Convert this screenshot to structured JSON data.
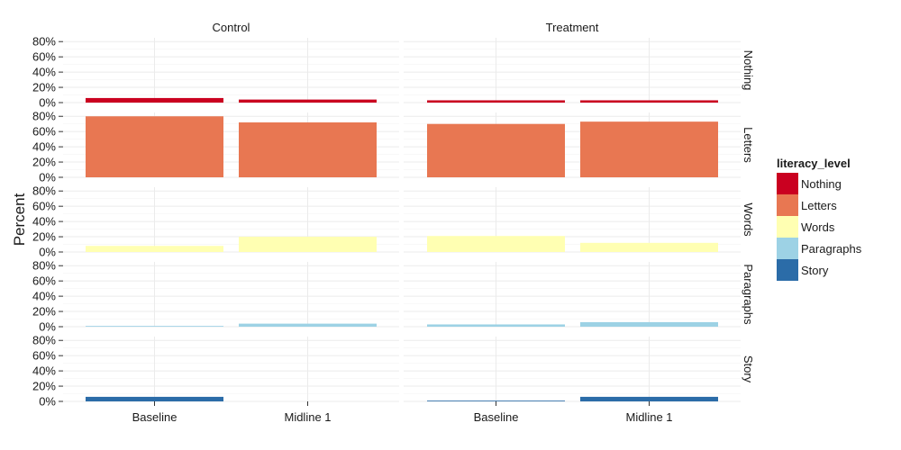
{
  "chart_data": {
    "type": "bar",
    "ylabel": "Percent",
    "xlabel": "",
    "y_ticks": [
      "0%",
      "20%",
      "40%",
      "60%",
      "80%"
    ],
    "ylim": [
      0,
      85
    ],
    "categories": [
      "Baseline",
      "Midline 1"
    ],
    "columns": [
      "Control",
      "Treatment"
    ],
    "rows": [
      "Nothing",
      "Letters",
      "Words",
      "Paragraphs",
      "Story"
    ],
    "legend": {
      "title": "literacy_level",
      "position": "right",
      "items": [
        {
          "label": "Nothing",
          "color": "#ca0020"
        },
        {
          "label": "Letters",
          "color": "#e87752"
        },
        {
          "label": "Words",
          "color": "#ffffb2"
        },
        {
          "label": "Paragraphs",
          "color": "#9dd2e5"
        },
        {
          "label": "Story",
          "color": "#2b6ca8"
        }
      ]
    },
    "grid": true,
    "series": [
      {
        "name": "Nothing",
        "values": {
          "Control": [
            6,
            4
          ],
          "Treatment": [
            3,
            3
          ]
        }
      },
      {
        "name": "Letters",
        "values": {
          "Control": [
            80,
            72
          ],
          "Treatment": [
            70,
            73
          ]
        }
      },
      {
        "name": "Words",
        "values": {
          "Control": [
            8,
            20
          ],
          "Treatment": [
            21,
            12
          ]
        }
      },
      {
        "name": "Paragraphs",
        "values": {
          "Control": [
            1,
            4
          ],
          "Treatment": [
            3,
            6
          ]
        }
      },
      {
        "name": "Story",
        "values": {
          "Control": [
            6,
            0
          ],
          "Treatment": [
            1,
            6
          ]
        }
      }
    ]
  }
}
